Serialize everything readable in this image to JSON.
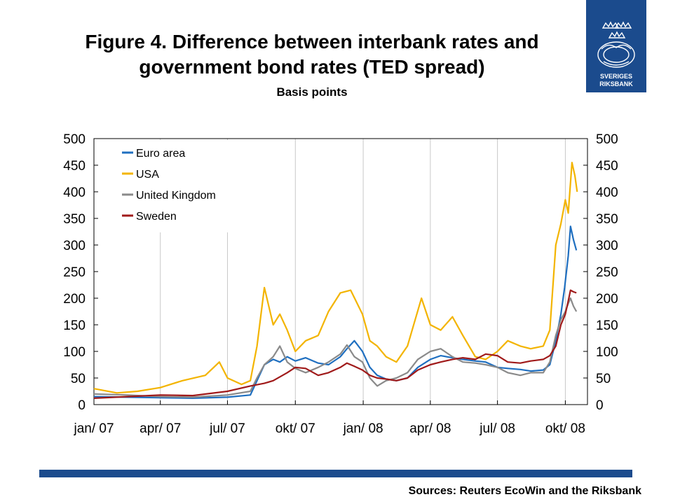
{
  "header": {
    "title_line1": "Figure 4. Difference between interbank rates and",
    "title_line2": "government bond rates (TED spread)",
    "subtitle": "Basis points"
  },
  "logo": {
    "line1": "SVERIGES",
    "line2": "RIKSBANK",
    "color": "#1b4b8d"
  },
  "footer": {
    "sources": "Sources:  Reuters EcoWin and the Riksbank"
  },
  "chart_data": {
    "type": "line",
    "title": "Figure 4. Difference between interbank rates and government bond rates (TED spread)",
    "ylabel": "Basis points",
    "ylim": [
      0,
      500
    ],
    "yticks": [
      0,
      50,
      100,
      150,
      200,
      250,
      300,
      350,
      400,
      450,
      500
    ],
    "xlim": [
      "2007-01-01",
      "2008-10-31"
    ],
    "xtick_labels": [
      "jan/ 07",
      "apr/ 07",
      "jul/ 07",
      "okt/ 07",
      "jan/ 08",
      "apr/ 08",
      "jul/ 08",
      "okt/ 08"
    ],
    "xtick_dates": [
      "2007-01-01",
      "2007-04-01",
      "2007-07-01",
      "2007-10-01",
      "2008-01-01",
      "2008-04-01",
      "2008-07-01",
      "2008-10-01"
    ],
    "grid": "vertical",
    "legend_position": "top-left",
    "dual_y_axis": true,
    "series": [
      {
        "name": "Euro area",
        "color": "#1f6fc0",
        "points": [
          [
            "2007-01-01",
            15
          ],
          [
            "2007-02-15",
            14
          ],
          [
            "2007-04-01",
            13
          ],
          [
            "2007-05-15",
            12
          ],
          [
            "2007-07-01",
            14
          ],
          [
            "2007-08-01",
            18
          ],
          [
            "2007-08-10",
            45
          ],
          [
            "2007-08-20",
            75
          ],
          [
            "2007-09-01",
            85
          ],
          [
            "2007-09-10",
            80
          ],
          [
            "2007-09-20",
            90
          ],
          [
            "2007-10-01",
            82
          ],
          [
            "2007-10-15",
            88
          ],
          [
            "2007-11-01",
            78
          ],
          [
            "2007-11-15",
            75
          ],
          [
            "2007-12-01",
            90
          ],
          [
            "2007-12-10",
            105
          ],
          [
            "2007-12-20",
            120
          ],
          [
            "2007-12-31",
            100
          ],
          [
            "2008-01-10",
            70
          ],
          [
            "2008-01-20",
            55
          ],
          [
            "2008-02-01",
            48
          ],
          [
            "2008-02-15",
            45
          ],
          [
            "2008-03-01",
            50
          ],
          [
            "2008-03-15",
            70
          ],
          [
            "2008-04-01",
            85
          ],
          [
            "2008-04-15",
            92
          ],
          [
            "2008-05-01",
            88
          ],
          [
            "2008-05-15",
            85
          ],
          [
            "2008-06-01",
            82
          ],
          [
            "2008-06-15",
            80
          ],
          [
            "2008-07-01",
            70
          ],
          [
            "2008-07-15",
            68
          ],
          [
            "2008-08-01",
            66
          ],
          [
            "2008-08-15",
            63
          ],
          [
            "2008-09-01",
            65
          ],
          [
            "2008-09-10",
            75
          ],
          [
            "2008-09-18",
            120
          ],
          [
            "2008-09-25",
            170
          ],
          [
            "2008-09-30",
            220
          ],
          [
            "2008-10-05",
            280
          ],
          [
            "2008-10-08",
            335
          ],
          [
            "2008-10-12",
            310
          ],
          [
            "2008-10-16",
            290
          ]
        ]
      },
      {
        "name": "USA",
        "color": "#f3b400",
        "points": [
          [
            "2007-01-01",
            30
          ],
          [
            "2007-02-01",
            22
          ],
          [
            "2007-03-01",
            25
          ],
          [
            "2007-04-01",
            32
          ],
          [
            "2007-05-01",
            45
          ],
          [
            "2007-06-01",
            55
          ],
          [
            "2007-06-20",
            80
          ],
          [
            "2007-07-01",
            50
          ],
          [
            "2007-07-20",
            38
          ],
          [
            "2007-08-01",
            45
          ],
          [
            "2007-08-10",
            110
          ],
          [
            "2007-08-20",
            220
          ],
          [
            "2007-09-01",
            150
          ],
          [
            "2007-09-10",
            170
          ],
          [
            "2007-09-20",
            140
          ],
          [
            "2007-10-01",
            100
          ],
          [
            "2007-10-15",
            120
          ],
          [
            "2007-11-01",
            130
          ],
          [
            "2007-11-15",
            175
          ],
          [
            "2007-12-01",
            210
          ],
          [
            "2007-12-15",
            215
          ],
          [
            "2007-12-31",
            170
          ],
          [
            "2008-01-10",
            120
          ],
          [
            "2008-01-20",
            110
          ],
          [
            "2008-02-01",
            90
          ],
          [
            "2008-02-15",
            80
          ],
          [
            "2008-03-01",
            110
          ],
          [
            "2008-03-20",
            200
          ],
          [
            "2008-04-01",
            150
          ],
          [
            "2008-04-15",
            140
          ],
          [
            "2008-05-01",
            165
          ],
          [
            "2008-05-15",
            130
          ],
          [
            "2008-06-01",
            90
          ],
          [
            "2008-06-15",
            85
          ],
          [
            "2008-07-01",
            100
          ],
          [
            "2008-07-15",
            120
          ],
          [
            "2008-08-01",
            110
          ],
          [
            "2008-08-15",
            105
          ],
          [
            "2008-09-01",
            110
          ],
          [
            "2008-09-10",
            140
          ],
          [
            "2008-09-18",
            300
          ],
          [
            "2008-09-25",
            340
          ],
          [
            "2008-10-01",
            385
          ],
          [
            "2008-10-05",
            360
          ],
          [
            "2008-10-10",
            455
          ],
          [
            "2008-10-14",
            430
          ],
          [
            "2008-10-17",
            400
          ]
        ]
      },
      {
        "name": "United Kingdom",
        "color": "#8a8a8a",
        "points": [
          [
            "2007-01-01",
            20
          ],
          [
            "2007-02-15",
            18
          ],
          [
            "2007-04-01",
            15
          ],
          [
            "2007-05-15",
            14
          ],
          [
            "2007-07-01",
            18
          ],
          [
            "2007-08-01",
            25
          ],
          [
            "2007-08-10",
            50
          ],
          [
            "2007-08-20",
            75
          ],
          [
            "2007-09-01",
            90
          ],
          [
            "2007-09-10",
            110
          ],
          [
            "2007-09-20",
            80
          ],
          [
            "2007-10-01",
            68
          ],
          [
            "2007-10-15",
            60
          ],
          [
            "2007-11-01",
            70
          ],
          [
            "2007-11-15",
            80
          ],
          [
            "2007-12-01",
            95
          ],
          [
            "2007-12-10",
            112
          ],
          [
            "2007-12-20",
            90
          ],
          [
            "2007-12-31",
            80
          ],
          [
            "2008-01-10",
            50
          ],
          [
            "2008-01-20",
            35
          ],
          [
            "2008-02-01",
            45
          ],
          [
            "2008-02-15",
            50
          ],
          [
            "2008-03-01",
            60
          ],
          [
            "2008-03-15",
            85
          ],
          [
            "2008-04-01",
            100
          ],
          [
            "2008-04-15",
            105
          ],
          [
            "2008-05-01",
            90
          ],
          [
            "2008-05-15",
            80
          ],
          [
            "2008-06-01",
            78
          ],
          [
            "2008-06-15",
            75
          ],
          [
            "2008-07-01",
            70
          ],
          [
            "2008-07-15",
            60
          ],
          [
            "2008-08-01",
            55
          ],
          [
            "2008-08-15",
            60
          ],
          [
            "2008-09-01",
            60
          ],
          [
            "2008-09-10",
            80
          ],
          [
            "2008-09-18",
            130
          ],
          [
            "2008-09-25",
            160
          ],
          [
            "2008-10-01",
            175
          ],
          [
            "2008-10-05",
            190
          ],
          [
            "2008-10-08",
            200
          ],
          [
            "2008-10-12",
            185
          ],
          [
            "2008-10-16",
            175
          ]
        ]
      },
      {
        "name": "Sweden",
        "color": "#a01a1a",
        "points": [
          [
            "2007-01-01",
            12
          ],
          [
            "2007-02-15",
            15
          ],
          [
            "2007-04-01",
            18
          ],
          [
            "2007-05-15",
            17
          ],
          [
            "2007-07-01",
            25
          ],
          [
            "2007-08-01",
            35
          ],
          [
            "2007-08-20",
            40
          ],
          [
            "2007-09-01",
            45
          ],
          [
            "2007-09-20",
            60
          ],
          [
            "2007-10-01",
            70
          ],
          [
            "2007-10-15",
            68
          ],
          [
            "2007-11-01",
            55
          ],
          [
            "2007-11-15",
            60
          ],
          [
            "2007-12-01",
            70
          ],
          [
            "2007-12-10",
            78
          ],
          [
            "2007-12-20",
            72
          ],
          [
            "2007-12-31",
            65
          ],
          [
            "2008-01-10",
            55
          ],
          [
            "2008-01-20",
            50
          ],
          [
            "2008-02-01",
            48
          ],
          [
            "2008-02-15",
            45
          ],
          [
            "2008-03-01",
            50
          ],
          [
            "2008-03-15",
            65
          ],
          [
            "2008-04-01",
            75
          ],
          [
            "2008-04-15",
            80
          ],
          [
            "2008-05-01",
            85
          ],
          [
            "2008-05-15",
            88
          ],
          [
            "2008-06-01",
            85
          ],
          [
            "2008-06-15",
            95
          ],
          [
            "2008-07-01",
            92
          ],
          [
            "2008-07-15",
            80
          ],
          [
            "2008-08-01",
            78
          ],
          [
            "2008-08-15",
            82
          ],
          [
            "2008-09-01",
            85
          ],
          [
            "2008-09-10",
            92
          ],
          [
            "2008-09-18",
            110
          ],
          [
            "2008-09-25",
            150
          ],
          [
            "2008-10-01",
            170
          ],
          [
            "2008-10-05",
            195
          ],
          [
            "2008-10-08",
            215
          ],
          [
            "2008-10-12",
            212
          ],
          [
            "2008-10-16",
            210
          ]
        ]
      }
    ]
  }
}
